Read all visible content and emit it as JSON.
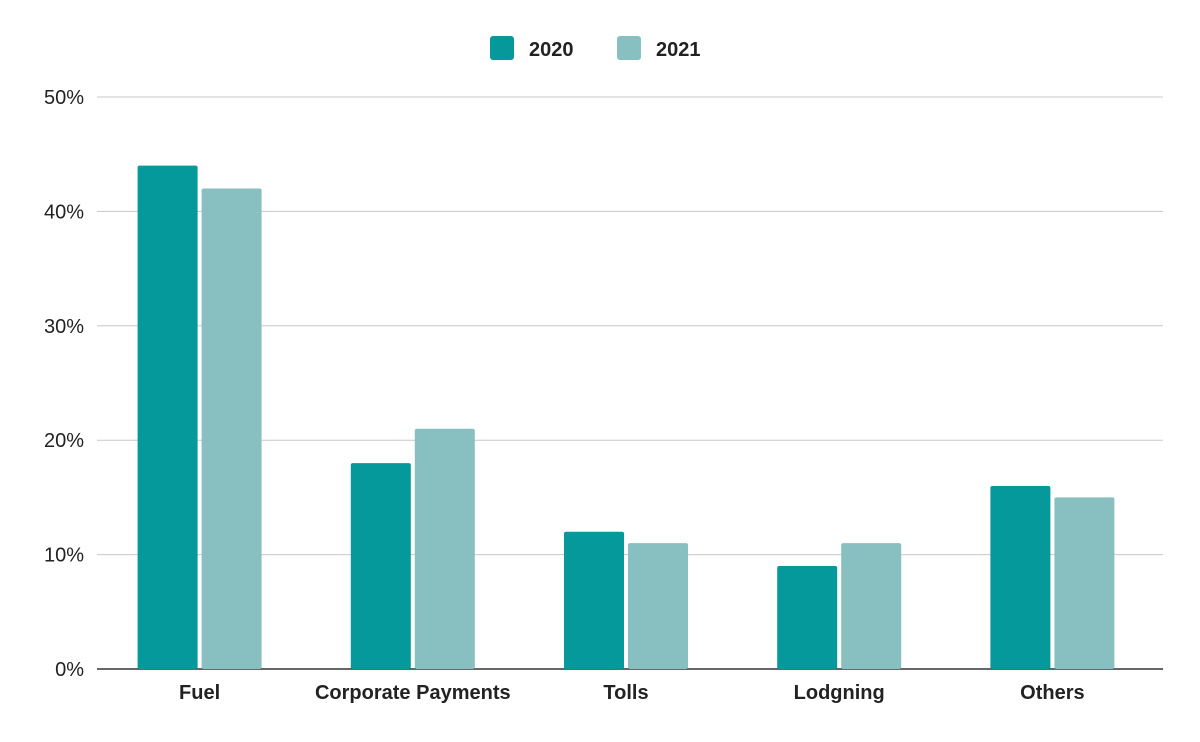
{
  "chart_data": {
    "type": "bar",
    "categories": [
      "Fuel",
      "Corporate Payments",
      "Tolls",
      "Lodgning",
      "Others"
    ],
    "series": [
      {
        "name": "2020",
        "values": [
          44,
          18,
          12,
          9,
          16
        ],
        "color": "#05999b"
      },
      {
        "name": "2021",
        "values": [
          42,
          21,
          11,
          11,
          15
        ],
        "color": "#88c0c1"
      }
    ],
    "ylim": [
      0,
      50
    ],
    "yticks": [
      0,
      10,
      20,
      30,
      40,
      50
    ],
    "ytick_labels": [
      "0%",
      "10%",
      "20%",
      "30%",
      "40%",
      "50%"
    ],
    "grid": true,
    "legend_position": "top-center",
    "title": "",
    "xlabel": "",
    "ylabel": ""
  }
}
